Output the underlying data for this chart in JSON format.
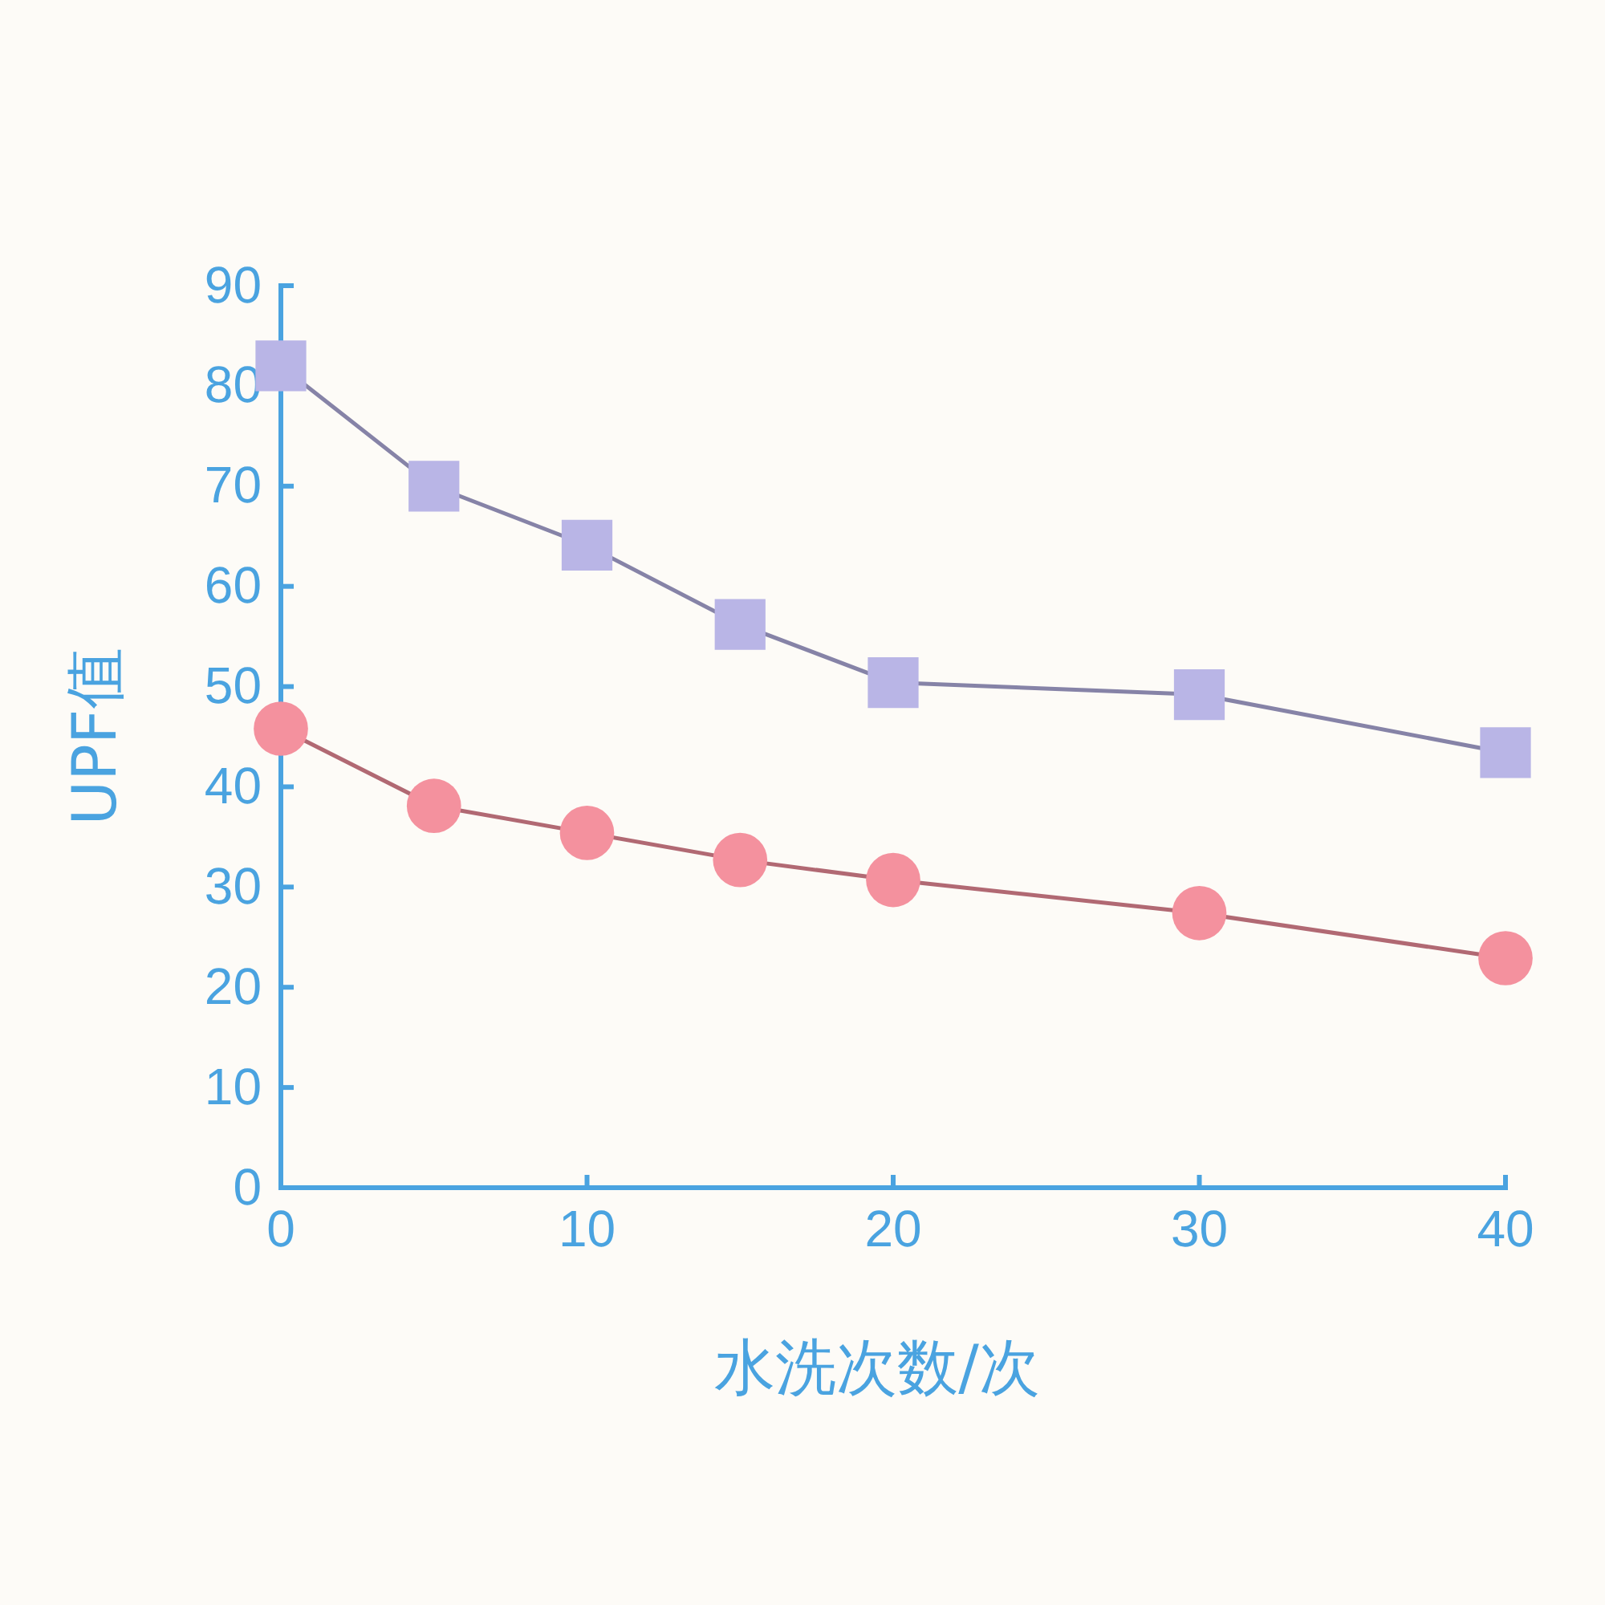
{
  "chart_data": {
    "type": "line",
    "xlabel": "水洗次数/次",
    "ylabel": "UPF值",
    "x": [
      0,
      5,
      10,
      15,
      20,
      30,
      40
    ],
    "series": [
      {
        "color": "#b9b5e6",
        "marker": "square",
        "values": [
          82.0,
          70.0,
          64.1,
          56.2,
          50.4,
          49.2,
          43.4
        ]
      },
      {
        "color": "#f4919e",
        "marker": "circle",
        "values": [
          45.8,
          38.1,
          35.4,
          32.7,
          30.7,
          27.4,
          22.9
        ]
      }
    ],
    "xlim": [
      0,
      40
    ],
    "xticks": [
      0,
      10,
      20,
      30,
      40
    ],
    "ylim": [
      0,
      90
    ],
    "yticks": [
      0,
      10,
      20,
      30,
      40,
      50,
      60,
      70,
      80,
      90
    ],
    "line_style": "solid"
  }
}
